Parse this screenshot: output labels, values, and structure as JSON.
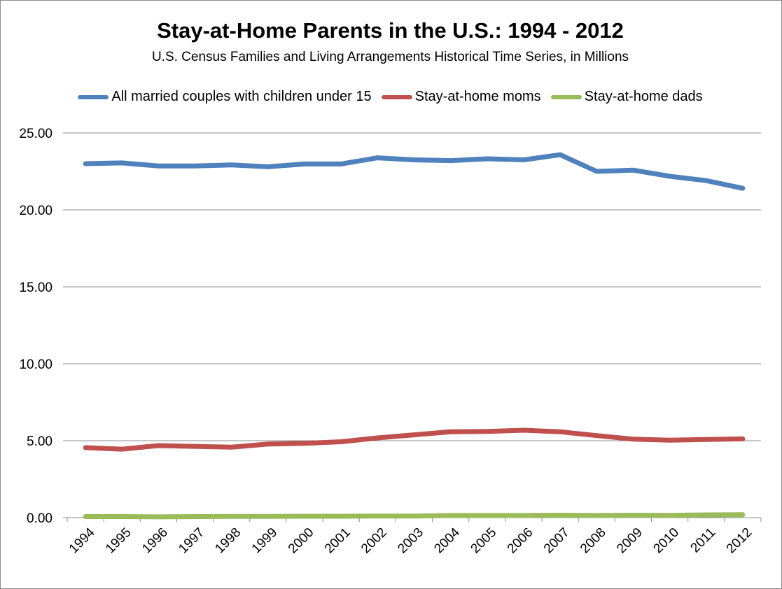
{
  "chart_data": {
    "type": "line",
    "title": "Stay-at-Home Parents in the U.S.: 1994 - 2012",
    "subtitle": "U.S. Census Families and Living Arrangements Historical Time Series, in Millions",
    "xlabel": "",
    "ylabel": "",
    "ylim": [
      0,
      25
    ],
    "yticks": [
      "0.00",
      "5.00",
      "10.00",
      "15.00",
      "20.00",
      "25.00"
    ],
    "grid": true,
    "legend_position": "top",
    "categories": [
      "1994",
      "1995",
      "1996",
      "1997",
      "1998",
      "1999",
      "2000",
      "2001",
      "2002",
      "2003",
      "2004",
      "2005",
      "2006",
      "2007",
      "2008",
      "2009",
      "2010",
      "2011",
      "2012"
    ],
    "series": [
      {
        "name": "All married couples with children under 15",
        "color": "#4f81bd",
        "values": [
          23.0,
          23.05,
          22.85,
          22.85,
          22.92,
          22.8,
          22.98,
          22.98,
          23.38,
          23.25,
          23.2,
          23.32,
          23.25,
          23.58,
          22.5,
          22.58,
          22.18,
          21.9,
          21.4
        ]
      },
      {
        "name": "Stay-at-home moms",
        "color": "#c0504d",
        "values": [
          4.55,
          4.45,
          4.68,
          4.63,
          4.58,
          4.78,
          4.83,
          4.93,
          5.18,
          5.38,
          5.58,
          5.6,
          5.68,
          5.58,
          5.33,
          5.1,
          5.03,
          5.08,
          5.12
        ]
      },
      {
        "name": "Stay-at-home dads",
        "color": "#9bbb59",
        "values": [
          0.07,
          0.07,
          0.05,
          0.07,
          0.08,
          0.08,
          0.09,
          0.09,
          0.1,
          0.1,
          0.14,
          0.14,
          0.14,
          0.16,
          0.14,
          0.16,
          0.15,
          0.18,
          0.19
        ]
      }
    ]
  }
}
